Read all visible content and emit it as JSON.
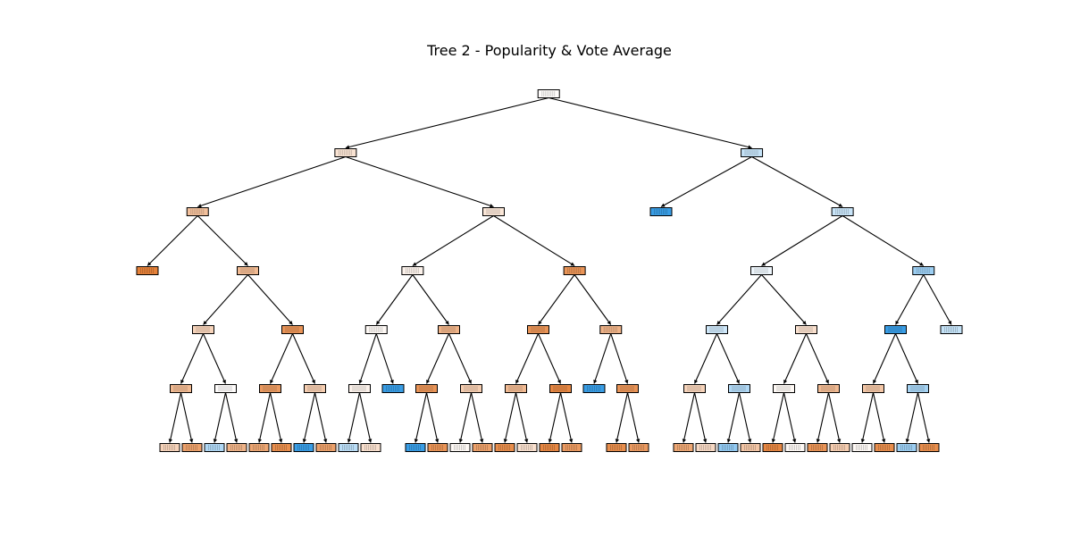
{
  "figure": {
    "title": "Tree 2 - Popularity & Vote Average"
  },
  "colors": {
    "background": "#ffffff",
    "class_a": "#e58139",
    "class_b": "#399de5",
    "neutral": "#ffffff",
    "stroke": "#000000"
  },
  "tree": {
    "max_depth": 6,
    "nodes": [
      {
        "id": 0,
        "depth": 0,
        "parent": null,
        "class": "a",
        "purity": 0.02
      },
      {
        "id": 1,
        "depth": 1,
        "parent": 0,
        "class": "a",
        "purity": 0.22
      },
      {
        "id": 2,
        "depth": 1,
        "parent": 0,
        "class": "b",
        "purity": 0.3
      },
      {
        "id": 3,
        "depth": 2,
        "parent": 1,
        "class": "a",
        "purity": 0.5
      },
      {
        "id": 4,
        "depth": 2,
        "parent": 1,
        "class": "a",
        "purity": 0.2
      },
      {
        "id": 5,
        "depth": 2,
        "parent": 2,
        "class": "b",
        "purity": 1.0
      },
      {
        "id": 6,
        "depth": 2,
        "parent": 2,
        "class": "b",
        "purity": 0.28
      },
      {
        "id": 7,
        "depth": 3,
        "parent": 3,
        "class": "a",
        "purity": 1.0
      },
      {
        "id": 8,
        "depth": 3,
        "parent": 3,
        "class": "a",
        "purity": 0.55
      },
      {
        "id": 9,
        "depth": 3,
        "parent": 4,
        "class": "a",
        "purity": 0.1
      },
      {
        "id": 10,
        "depth": 3,
        "parent": 4,
        "class": "a",
        "purity": 0.85
      },
      {
        "id": 11,
        "depth": 3,
        "parent": 6,
        "class": "b",
        "purity": 0.08
      },
      {
        "id": 12,
        "depth": 3,
        "parent": 6,
        "class": "b",
        "purity": 0.5
      },
      {
        "id": 13,
        "depth": 4,
        "parent": 8,
        "class": "a",
        "purity": 0.35
      },
      {
        "id": 14,
        "depth": 4,
        "parent": 8,
        "class": "a",
        "purity": 0.85
      },
      {
        "id": 15,
        "depth": 4,
        "parent": 9,
        "class": "a",
        "purity": 0.05
      },
      {
        "id": 16,
        "depth": 4,
        "parent": 9,
        "class": "a",
        "purity": 0.6
      },
      {
        "id": 17,
        "depth": 4,
        "parent": 10,
        "class": "a",
        "purity": 0.85
      },
      {
        "id": 18,
        "depth": 4,
        "parent": 10,
        "class": "a",
        "purity": 0.6
      },
      {
        "id": 19,
        "depth": 4,
        "parent": 11,
        "class": "b",
        "purity": 0.25
      },
      {
        "id": 20,
        "depth": 4,
        "parent": 11,
        "class": "a",
        "purity": 0.25
      },
      {
        "id": 21,
        "depth": 4,
        "parent": 12,
        "class": "b",
        "purity": 1.0
      },
      {
        "id": 22,
        "depth": 4,
        "parent": 12,
        "class": "b",
        "purity": 0.3
      },
      {
        "id": 23,
        "depth": 5,
        "parent": 13,
        "class": "a",
        "purity": 0.55
      },
      {
        "id": 24,
        "depth": 5,
        "parent": 13,
        "class": "a",
        "purity": 0.02
      },
      {
        "id": 25,
        "depth": 5,
        "parent": 14,
        "class": "a",
        "purity": 0.8
      },
      {
        "id": 26,
        "depth": 5,
        "parent": 14,
        "class": "a",
        "purity": 0.4
      },
      {
        "id": 27,
        "depth": 5,
        "parent": 15,
        "class": "a",
        "purity": 0.1
      },
      {
        "id": 28,
        "depth": 5,
        "parent": 15,
        "class": "b",
        "purity": 1.0
      },
      {
        "id": 29,
        "depth": 5,
        "parent": 16,
        "class": "a",
        "purity": 0.85
      },
      {
        "id": 30,
        "depth": 5,
        "parent": 16,
        "class": "a",
        "purity": 0.4
      },
      {
        "id": 31,
        "depth": 5,
        "parent": 17,
        "class": "a",
        "purity": 0.55
      },
      {
        "id": 32,
        "depth": 5,
        "parent": 17,
        "class": "a",
        "purity": 0.95
      },
      {
        "id": 33,
        "depth": 5,
        "parent": 18,
        "class": "b",
        "purity": 1.0
      },
      {
        "id": 34,
        "depth": 5,
        "parent": 18,
        "class": "a",
        "purity": 0.85
      },
      {
        "id": 35,
        "depth": 5,
        "parent": 19,
        "class": "a",
        "purity": 0.35
      },
      {
        "id": 36,
        "depth": 5,
        "parent": 19,
        "class": "b",
        "purity": 0.4
      },
      {
        "id": 37,
        "depth": 5,
        "parent": 20,
        "class": "a",
        "purity": 0.05
      },
      {
        "id": 38,
        "depth": 5,
        "parent": 20,
        "class": "a",
        "purity": 0.55
      },
      {
        "id": 39,
        "depth": 5,
        "parent": 21,
        "class": "a",
        "purity": 0.45
      },
      {
        "id": 40,
        "depth": 5,
        "parent": 21,
        "class": "b",
        "purity": 0.45
      },
      {
        "id": 41,
        "depth": 6,
        "parent": 23,
        "class": "a",
        "purity": 0.35
      },
      {
        "id": 42,
        "depth": 6,
        "parent": 23,
        "class": "a",
        "purity": 0.75
      },
      {
        "id": 43,
        "depth": 6,
        "parent": 24,
        "class": "b",
        "purity": 0.4
      },
      {
        "id": 44,
        "depth": 6,
        "parent": 24,
        "class": "a",
        "purity": 0.6
      },
      {
        "id": 45,
        "depth": 6,
        "parent": 25,
        "class": "a",
        "purity": 0.7
      },
      {
        "id": 46,
        "depth": 6,
        "parent": 25,
        "class": "a",
        "purity": 0.9
      },
      {
        "id": 47,
        "depth": 6,
        "parent": 26,
        "class": "b",
        "purity": 1.0
      },
      {
        "id": 48,
        "depth": 6,
        "parent": 26,
        "class": "a",
        "purity": 0.75
      },
      {
        "id": 49,
        "depth": 6,
        "parent": 27,
        "class": "b",
        "purity": 0.35
      },
      {
        "id": 50,
        "depth": 6,
        "parent": 27,
        "class": "a",
        "purity": 0.25
      },
      {
        "id": 51,
        "depth": 6,
        "parent": 29,
        "class": "b",
        "purity": 1.0
      },
      {
        "id": 52,
        "depth": 6,
        "parent": 29,
        "class": "a",
        "purity": 0.85
      },
      {
        "id": 53,
        "depth": 6,
        "parent": 30,
        "class": "a",
        "purity": 0.05
      },
      {
        "id": 54,
        "depth": 6,
        "parent": 30,
        "class": "a",
        "purity": 0.75
      },
      {
        "id": 55,
        "depth": 6,
        "parent": 31,
        "class": "a",
        "purity": 0.9
      },
      {
        "id": 56,
        "depth": 6,
        "parent": 31,
        "class": "a",
        "purity": 0.25
      },
      {
        "id": 57,
        "depth": 6,
        "parent": 32,
        "class": "a",
        "purity": 0.95
      },
      {
        "id": 58,
        "depth": 6,
        "parent": 32,
        "class": "a",
        "purity": 0.8
      },
      {
        "id": 59,
        "depth": 6,
        "parent": 34,
        "class": "a",
        "purity": 0.9
      },
      {
        "id": 60,
        "depth": 6,
        "parent": 34,
        "class": "a",
        "purity": 0.8
      },
      {
        "id": 61,
        "depth": 6,
        "parent": 35,
        "class": "a",
        "purity": 0.7
      },
      {
        "id": 62,
        "depth": 6,
        "parent": 35,
        "class": "a",
        "purity": 0.3
      },
      {
        "id": 63,
        "depth": 6,
        "parent": 36,
        "class": "b",
        "purity": 0.55
      },
      {
        "id": 64,
        "depth": 6,
        "parent": 36,
        "class": "a",
        "purity": 0.45
      },
      {
        "id": 65,
        "depth": 6,
        "parent": 37,
        "class": "a",
        "purity": 0.95
      },
      {
        "id": 66,
        "depth": 6,
        "parent": 37,
        "class": "a",
        "purity": 0.05
      },
      {
        "id": 67,
        "depth": 6,
        "parent": 38,
        "class": "a",
        "purity": 0.85
      },
      {
        "id": 68,
        "depth": 6,
        "parent": 38,
        "class": "a",
        "purity": 0.4
      },
      {
        "id": 69,
        "depth": 6,
        "parent": 39,
        "class": "a",
        "purity": 0.05
      },
      {
        "id": 70,
        "depth": 6,
        "parent": 39,
        "class": "a",
        "purity": 0.9
      },
      {
        "id": 71,
        "depth": 6,
        "parent": 40,
        "class": "b",
        "purity": 0.5
      },
      {
        "id": 72,
        "depth": 6,
        "parent": 40,
        "class": "a",
        "purity": 0.9
      }
    ]
  }
}
